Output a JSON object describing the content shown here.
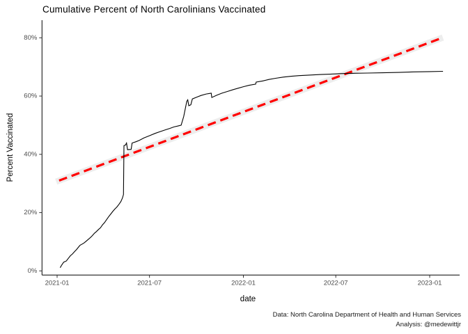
{
  "chart_data": {
    "type": "line",
    "title": "Cumulative Percent of North Carolinians Vaccinated",
    "xlabel": "date",
    "ylabel": "Percent Vaccinated",
    "caption_line1": "Data: North Carolina Department of Health and Human Services",
    "caption_line2": "Analysis: @medewittjr",
    "grid": "off",
    "legend": "none",
    "colors": {
      "series_line": "#000000",
      "trend_line": "#FF0000",
      "trend_band": "#EBEBEB",
      "axis_line": "#000000",
      "tick_text": "#4D4D4D"
    },
    "x_axis": {
      "title": "date",
      "ticks": [
        {
          "date": "2021-01-01",
          "label": "2021-01"
        },
        {
          "date": "2021-07-01",
          "label": "2021-07"
        },
        {
          "date": "2022-01-01",
          "label": "2022-01"
        },
        {
          "date": "2022-07-01",
          "label": "2022-07"
        },
        {
          "date": "2023-01-01",
          "label": "2023-01"
        }
      ]
    },
    "y_axis": {
      "title": "Percent Vaccinated",
      "range": [
        0,
        80
      ],
      "ticks": [
        {
          "value": 0,
          "label": "0%"
        },
        {
          "value": 20,
          "label": "20%"
        },
        {
          "value": 40,
          "label": "40%"
        },
        {
          "value": 60,
          "label": "60%"
        },
        {
          "value": 80,
          "label": "80%"
        }
      ]
    },
    "series": [
      {
        "name": "cumulative-percent-vaccinated",
        "style": "solid",
        "color": "#000000",
        "width": 1.1,
        "points": [
          [
            "2021-01-07",
            1.1
          ],
          [
            "2021-01-10",
            2.0
          ],
          [
            "2021-01-14",
            3.0
          ],
          [
            "2021-01-19",
            3.4
          ],
          [
            "2021-01-23",
            4.3
          ],
          [
            "2021-01-27",
            5.2
          ],
          [
            "2021-01-31",
            5.8
          ],
          [
            "2021-02-04",
            6.6
          ],
          [
            "2021-02-08",
            7.3
          ],
          [
            "2021-02-12",
            8.2
          ],
          [
            "2021-02-15",
            8.8
          ],
          [
            "2021-02-19",
            9.2
          ],
          [
            "2021-02-23",
            9.6
          ],
          [
            "2021-02-27",
            10.2
          ],
          [
            "2021-03-03",
            10.8
          ],
          [
            "2021-03-07",
            11.4
          ],
          [
            "2021-03-11",
            12.1
          ],
          [
            "2021-03-15",
            12.9
          ],
          [
            "2021-03-19",
            13.5
          ],
          [
            "2021-03-23",
            14.2
          ],
          [
            "2021-03-27",
            14.8
          ],
          [
            "2021-03-31",
            15.8
          ],
          [
            "2021-04-04",
            16.6
          ],
          [
            "2021-04-08",
            17.6
          ],
          [
            "2021-04-12",
            18.6
          ],
          [
            "2021-04-16",
            19.5
          ],
          [
            "2021-04-20",
            20.4
          ],
          [
            "2021-04-24",
            21.2
          ],
          [
            "2021-04-28",
            21.9
          ],
          [
            "2021-05-02",
            22.8
          ],
          [
            "2021-05-06",
            23.8
          ],
          [
            "2021-05-09",
            25.0
          ],
          [
            "2021-05-11",
            26.2
          ],
          [
            "2021-05-12",
            43.0
          ],
          [
            "2021-05-15",
            43.2
          ],
          [
            "2021-05-17",
            43.9
          ],
          [
            "2021-05-19",
            41.6
          ],
          [
            "2021-05-26",
            41.7
          ],
          [
            "2021-05-28",
            43.9
          ],
          [
            "2021-06-04",
            44.3
          ],
          [
            "2021-06-11",
            44.8
          ],
          [
            "2021-06-20",
            45.6
          ],
          [
            "2021-07-01",
            46.4
          ],
          [
            "2021-07-12",
            47.2
          ],
          [
            "2021-07-22",
            47.8
          ],
          [
            "2021-08-01",
            48.4
          ],
          [
            "2021-08-10",
            48.9
          ],
          [
            "2021-08-18",
            49.4
          ],
          [
            "2021-08-25",
            49.7
          ],
          [
            "2021-09-01",
            50.0
          ],
          [
            "2021-09-06",
            53.0
          ],
          [
            "2021-09-12",
            58.2
          ],
          [
            "2021-09-14",
            58.7
          ],
          [
            "2021-09-16",
            56.7
          ],
          [
            "2021-09-20",
            57.0
          ],
          [
            "2021-09-23",
            59.0
          ],
          [
            "2021-10-01",
            59.6
          ],
          [
            "2021-10-10",
            60.2
          ],
          [
            "2021-10-20",
            60.7
          ],
          [
            "2021-10-30",
            61.0
          ],
          [
            "2021-10-31",
            59.5
          ],
          [
            "2021-11-10",
            60.3
          ],
          [
            "2021-11-20",
            61.0
          ],
          [
            "2021-12-01",
            61.6
          ],
          [
            "2021-12-12",
            62.2
          ],
          [
            "2021-12-22",
            62.7
          ],
          [
            "2022-01-01",
            63.2
          ],
          [
            "2022-01-12",
            63.7
          ],
          [
            "2022-01-25",
            64.1
          ],
          [
            "2022-01-26",
            64.8
          ],
          [
            "2022-02-08",
            65.2
          ],
          [
            "2022-02-20",
            65.7
          ],
          [
            "2022-03-05",
            66.1
          ],
          [
            "2022-03-20",
            66.5
          ],
          [
            "2022-04-05",
            66.8
          ],
          [
            "2022-04-20",
            67.0
          ],
          [
            "2022-05-10",
            67.2
          ],
          [
            "2022-06-01",
            67.4
          ],
          [
            "2022-06-20",
            67.5
          ],
          [
            "2022-07-10",
            67.7
          ],
          [
            "2022-08-01",
            67.8
          ],
          [
            "2022-09-01",
            67.9
          ],
          [
            "2022-10-01",
            68.0
          ],
          [
            "2022-11-01",
            68.1
          ],
          [
            "2022-12-01",
            68.3
          ],
          [
            "2023-01-01",
            68.4
          ],
          [
            "2023-01-27",
            68.5
          ]
        ]
      },
      {
        "name": "linear-trend",
        "style": "dashed",
        "color": "#FF0000",
        "width": 3.2,
        "dash": [
          12,
          7
        ],
        "band_color": "#EBEBEB",
        "band_width": 9,
        "points": [
          [
            "2021-01-05",
            31.0
          ],
          [
            "2023-01-21",
            79.7
          ]
        ]
      }
    ]
  }
}
